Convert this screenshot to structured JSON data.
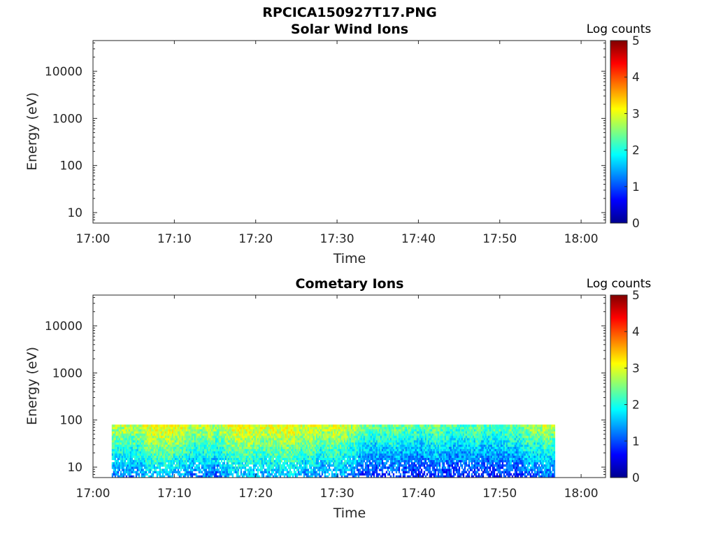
{
  "figure_title": "RPCICA150927T17.PNG",
  "chart_data": [
    {
      "type": "heatmap",
      "title": "Solar Wind Ions",
      "xlabel": "Time",
      "ylabel": "Energy (eV)",
      "x_ticks": [
        "17:00",
        "17:10",
        "17:20",
        "17:30",
        "17:40",
        "17:50",
        "18:00"
      ],
      "x_range_minutes": [
        0,
        63
      ],
      "y_scale": "log",
      "y_ticks": [
        {
          "value": 10,
          "label": "10"
        },
        {
          "value": 100,
          "label": "100"
        },
        {
          "value": 1000,
          "label": "1000"
        },
        {
          "value": 10000,
          "label": "10000"
        }
      ],
      "y_range": [
        6,
        45000
      ],
      "colorbar": {
        "title": "Log counts",
        "min": 0,
        "max": 5,
        "ticks": [
          "0",
          "1",
          "2",
          "3",
          "4",
          "5"
        ],
        "colormap": "jet"
      },
      "data_present": false,
      "data_x_minutes": [],
      "data_y_max": null,
      "data_seed": 0
    },
    {
      "type": "heatmap",
      "title": "Cometary Ions",
      "xlabel": "Time",
      "ylabel": "Energy (eV)",
      "x_ticks": [
        "17:00",
        "17:10",
        "17:20",
        "17:30",
        "17:40",
        "17:50",
        "18:00"
      ],
      "x_range_minutes": [
        0,
        63
      ],
      "y_scale": "log",
      "y_ticks": [
        {
          "value": 10,
          "label": "10"
        },
        {
          "value": 100,
          "label": "100"
        },
        {
          "value": 1000,
          "label": "1000"
        },
        {
          "value": 10000,
          "label": "10000"
        }
      ],
      "y_range": [
        6,
        45000
      ],
      "colorbar": {
        "title": "Log counts",
        "min": 0,
        "max": 5,
        "ticks": [
          "0",
          "1",
          "2",
          "3",
          "4",
          "5"
        ],
        "colormap": "jet"
      },
      "data_present": true,
      "data_x_minutes": [
        2.3,
        56.8
      ],
      "data_y_max": 80,
      "data_seed": 7
    }
  ]
}
